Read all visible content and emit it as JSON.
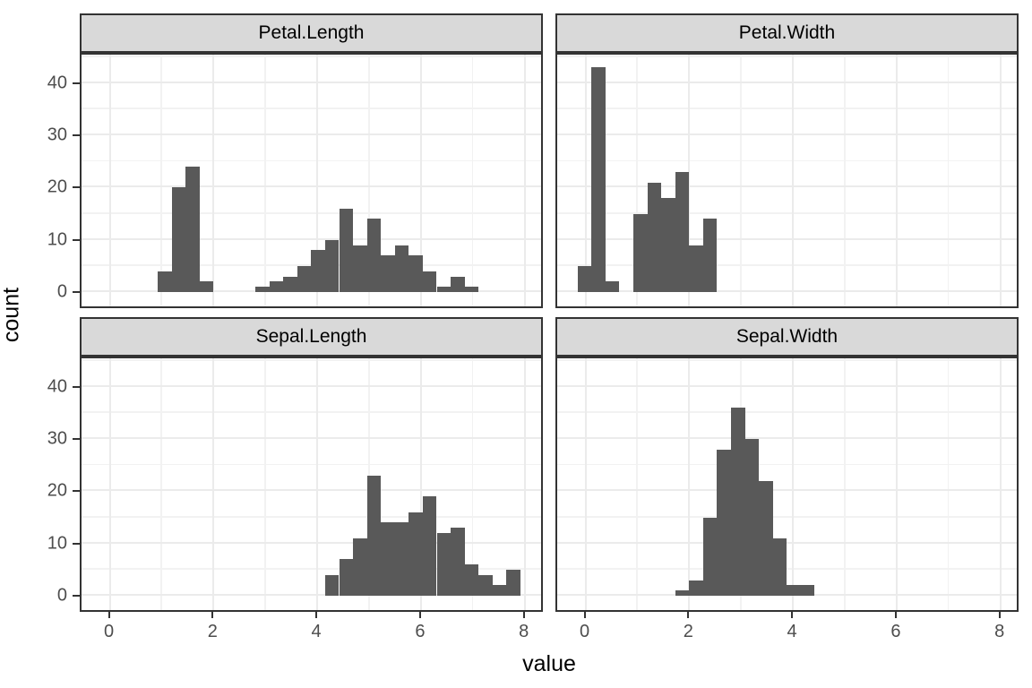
{
  "chart_data": {
    "type": "bar",
    "subtype": "faceted-histogram",
    "title": "",
    "xlabel": "value",
    "ylabel": "count",
    "x_ticks": [
      0,
      2,
      4,
      6,
      8
    ],
    "y_ticks": [
      0,
      10,
      20,
      30,
      40
    ],
    "x_minor_ticks": [
      1,
      3,
      5,
      7
    ],
    "y_minor_ticks": [
      5,
      15,
      25,
      35,
      45
    ],
    "xlim": [
      -0.56,
      8.33
    ],
    "ylim": [
      -2.6,
      46.3
    ],
    "grid": "major-and-minor",
    "legend_position": "none",
    "binwidth": 0.268966,
    "facets": [
      {
        "label": "Petal.Length",
        "bins": [
          [
            0.941,
            4
          ],
          [
            1.21,
            20
          ],
          [
            1.479,
            24
          ],
          [
            1.748,
            2
          ],
          [
            2.824,
            1
          ],
          [
            3.093,
            2
          ],
          [
            3.362,
            3
          ],
          [
            3.631,
            5
          ],
          [
            3.9,
            8
          ],
          [
            4.169,
            10
          ],
          [
            4.438,
            16
          ],
          [
            4.707,
            9
          ],
          [
            4.976,
            14
          ],
          [
            5.245,
            7
          ],
          [
            5.514,
            9
          ],
          [
            5.783,
            7
          ],
          [
            6.052,
            4
          ],
          [
            6.321,
            1
          ],
          [
            6.59,
            3
          ],
          [
            6.859,
            1
          ]
        ]
      },
      {
        "label": "Petal.Width",
        "bins": [
          [
            -0.134,
            5
          ],
          [
            0.134,
            43
          ],
          [
            0.403,
            2
          ],
          [
            0.941,
            15
          ],
          [
            1.21,
            21
          ],
          [
            1.479,
            18
          ],
          [
            1.748,
            23
          ],
          [
            2.017,
            9
          ],
          [
            2.286,
            14
          ]
        ]
      },
      {
        "label": "Sepal.Length",
        "bins": [
          [
            4.169,
            4
          ],
          [
            4.438,
            7
          ],
          [
            4.707,
            11
          ],
          [
            4.976,
            23
          ],
          [
            5.245,
            14
          ],
          [
            5.514,
            14
          ],
          [
            5.783,
            16
          ],
          [
            6.052,
            19
          ],
          [
            6.321,
            12
          ],
          [
            6.59,
            13
          ],
          [
            6.859,
            6
          ],
          [
            7.128,
            4
          ],
          [
            7.397,
            2
          ],
          [
            7.666,
            5
          ]
        ]
      },
      {
        "label": "Sepal.Width",
        "bins": [
          [
            1.748,
            1
          ],
          [
            2.017,
            3
          ],
          [
            2.286,
            15
          ],
          [
            2.555,
            28
          ],
          [
            2.824,
            36
          ],
          [
            3.093,
            30
          ],
          [
            3.362,
            22
          ],
          [
            3.631,
            11
          ],
          [
            3.9,
            2
          ],
          [
            4.169,
            2
          ]
        ]
      }
    ]
  },
  "style": {
    "bar_color": "#595959",
    "strip_bg": "#d9d9d9",
    "strip_border": "#333333",
    "panel_border": "#333333",
    "grid_major_color": "#ebebeb",
    "grid_minor_color": "#f2f2f2",
    "tick_label_color": "#4d4d4d",
    "axis_title_color": "#000000",
    "background": "#ffffff"
  }
}
